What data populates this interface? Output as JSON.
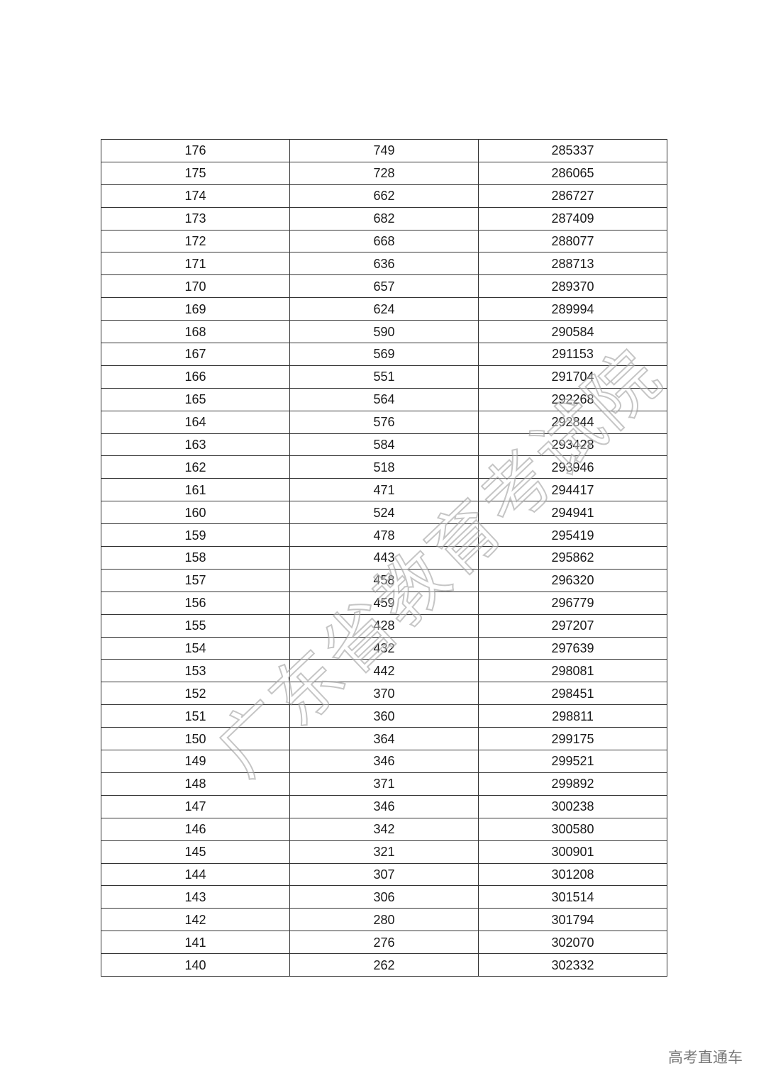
{
  "table": {
    "rows": [
      [
        "176",
        "749",
        "285337"
      ],
      [
        "175",
        "728",
        "286065"
      ],
      [
        "174",
        "662",
        "286727"
      ],
      [
        "173",
        "682",
        "287409"
      ],
      [
        "172",
        "668",
        "288077"
      ],
      [
        "171",
        "636",
        "288713"
      ],
      [
        "170",
        "657",
        "289370"
      ],
      [
        "169",
        "624",
        "289994"
      ],
      [
        "168",
        "590",
        "290584"
      ],
      [
        "167",
        "569",
        "291153"
      ],
      [
        "166",
        "551",
        "291704"
      ],
      [
        "165",
        "564",
        "292268"
      ],
      [
        "164",
        "576",
        "292844"
      ],
      [
        "163",
        "584",
        "293428"
      ],
      [
        "162",
        "518",
        "293946"
      ],
      [
        "161",
        "471",
        "294417"
      ],
      [
        "160",
        "524",
        "294941"
      ],
      [
        "159",
        "478",
        "295419"
      ],
      [
        "158",
        "443",
        "295862"
      ],
      [
        "157",
        "458",
        "296320"
      ],
      [
        "156",
        "459",
        "296779"
      ],
      [
        "155",
        "428",
        "297207"
      ],
      [
        "154",
        "432",
        "297639"
      ],
      [
        "153",
        "442",
        "298081"
      ],
      [
        "152",
        "370",
        "298451"
      ],
      [
        "151",
        "360",
        "298811"
      ],
      [
        "150",
        "364",
        "299175"
      ],
      [
        "149",
        "346",
        "299521"
      ],
      [
        "148",
        "371",
        "299892"
      ],
      [
        "147",
        "346",
        "300238"
      ],
      [
        "146",
        "342",
        "300580"
      ],
      [
        "145",
        "321",
        "300901"
      ],
      [
        "144",
        "307",
        "301208"
      ],
      [
        "143",
        "306",
        "301514"
      ],
      [
        "142",
        "280",
        "301794"
      ],
      [
        "141",
        "276",
        "302070"
      ],
      [
        "140",
        "262",
        "302332"
      ]
    ]
  },
  "watermark": {
    "text": "广东省教育考试院"
  },
  "footer": {
    "source_mark": "高考直通车"
  }
}
